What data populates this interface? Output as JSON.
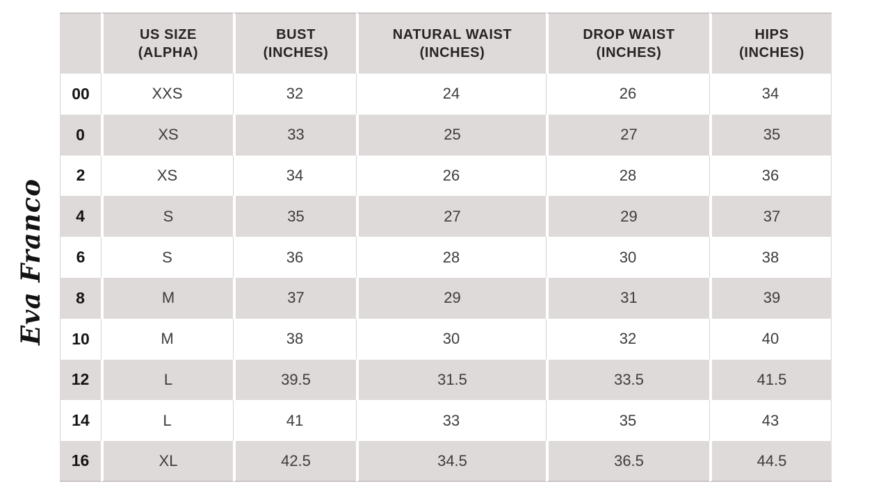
{
  "brand": {
    "logo_text": "Eva Franco"
  },
  "colors": {
    "stripe": "#dedad9",
    "separator": "#d8d4d3",
    "edge": "#c9c4c3",
    "header-text": "#262323",
    "cell-text": "#3e3b3a",
    "size-text": "#161413",
    "logo-ink": "#151312",
    "bg": "#ffffff"
  },
  "table": {
    "columns": [
      {
        "line1": "",
        "line2": ""
      },
      {
        "line1": "US SIZE",
        "line2": "(ALPHA)"
      },
      {
        "line1": "BUST",
        "line2": "(INCHES)"
      },
      {
        "line1": "NATURAL WAIST",
        "line2": "(INCHES)"
      },
      {
        "line1": "DROP WAIST",
        "line2": "(INCHES)"
      },
      {
        "line1": "HIPS",
        "line2": "(INCHES)"
      }
    ],
    "rows": [
      {
        "size": "00",
        "alpha": "XXS",
        "bust": "32",
        "waist": "24",
        "drop": "26",
        "hips": "34"
      },
      {
        "size": "0",
        "alpha": "XS",
        "bust": "33",
        "waist": "25",
        "drop": "27",
        "hips": "35"
      },
      {
        "size": "2",
        "alpha": "XS",
        "bust": "34",
        "waist": "26",
        "drop": "28",
        "hips": "36"
      },
      {
        "size": "4",
        "alpha": "S",
        "bust": "35",
        "waist": "27",
        "drop": "29",
        "hips": "37"
      },
      {
        "size": "6",
        "alpha": "S",
        "bust": "36",
        "waist": "28",
        "drop": "30",
        "hips": "38"
      },
      {
        "size": "8",
        "alpha": "M",
        "bust": "37",
        "waist": "29",
        "drop": "31",
        "hips": "39"
      },
      {
        "size": "10",
        "alpha": "M",
        "bust": "38",
        "waist": "30",
        "drop": "32",
        "hips": "40"
      },
      {
        "size": "12",
        "alpha": "L",
        "bust": "39.5",
        "waist": "31.5",
        "drop": "33.5",
        "hips": "41.5"
      },
      {
        "size": "14",
        "alpha": "L",
        "bust": "41",
        "waist": "33",
        "drop": "35",
        "hips": "43"
      },
      {
        "size": "16",
        "alpha": "XL",
        "bust": "42.5",
        "waist": "34.5",
        "drop": "36.5",
        "hips": "44.5"
      }
    ]
  },
  "chart_data": {
    "type": "table",
    "columns": [
      "",
      "US SIZE (ALPHA)",
      "BUST (INCHES)",
      "NATURAL WAIST (INCHES)",
      "DROP WAIST (INCHES)",
      "HIPS (INCHES)"
    ],
    "rows": [
      [
        "00",
        "XXS",
        32,
        24,
        26,
        34
      ],
      [
        "0",
        "XS",
        33,
        25,
        27,
        35
      ],
      [
        "2",
        "XS",
        34,
        26,
        28,
        36
      ],
      [
        "4",
        "S",
        35,
        27,
        29,
        37
      ],
      [
        "6",
        "S",
        36,
        28,
        30,
        38
      ],
      [
        "8",
        "M",
        37,
        29,
        31,
        39
      ],
      [
        "10",
        "M",
        38,
        30,
        32,
        40
      ],
      [
        "12",
        "L",
        39.5,
        31.5,
        33.5,
        41.5
      ],
      [
        "14",
        "L",
        41,
        33,
        35,
        43
      ],
      [
        "16",
        "XL",
        42.5,
        34.5,
        36.5,
        44.5
      ]
    ]
  }
}
